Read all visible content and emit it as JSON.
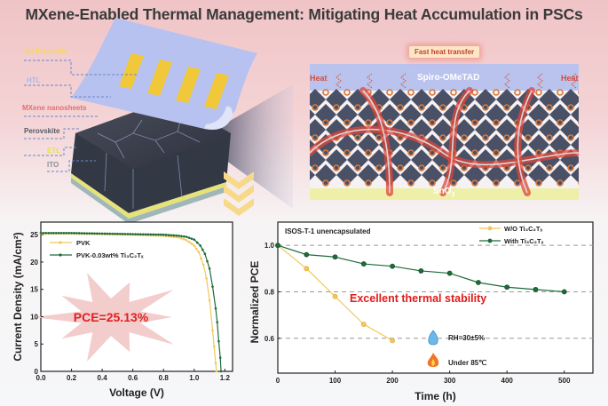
{
  "title": "MXene-Enabled Thermal Management: Mitigating Heat Accumulation in PSCs",
  "device_schematic": {
    "layers": [
      {
        "label": "Au Electrode",
        "color": "#f5d66a"
      },
      {
        "label": "HTL",
        "color": "#a9b8ee"
      },
      {
        "label": "MXene nanosheets",
        "color": "#e07070"
      },
      {
        "label": "Perovskite",
        "color": "#555a66"
      },
      {
        "label": "ETL",
        "color": "#e8e050"
      },
      {
        "label": "ITO",
        "color": "#8a8f9a"
      }
    ]
  },
  "lattice_schematic": {
    "callout": "Fast heat transfer",
    "top_layer": "Spiro-OMeTAD",
    "bottom_layer": "SnO2",
    "heat_left": "Heat",
    "heat_right": "Heat"
  },
  "chart_data": [
    {
      "type": "line",
      "title": "",
      "xlabel": "Voltage (V)",
      "ylabel": "Current Density (mA/cm²)",
      "xlim": [
        0.0,
        1.25
      ],
      "ylim": [
        0,
        27.3
      ],
      "xticks": [
        "0.0",
        "0.2",
        "0.4",
        "0.6",
        "0.8",
        "1.0",
        "1.2"
      ],
      "yticks": [
        "0",
        "5",
        "10",
        "15",
        "20",
        "25"
      ],
      "annotation": "PCE=25.13%",
      "legend_position": "upper-left",
      "series": [
        {
          "name": "PVK",
          "color": "#f0c85a",
          "x": [
            0.0,
            0.2,
            0.4,
            0.6,
            0.8,
            0.9,
            0.95,
            1.0,
            1.03,
            1.06,
            1.08,
            1.1,
            1.12,
            1.13,
            1.14,
            1.145
          ],
          "y": [
            25.2,
            25.2,
            25.1,
            25.0,
            24.8,
            24.5,
            24.0,
            23.0,
            21.8,
            19.5,
            17.0,
            13.0,
            7.5,
            4.5,
            1.5,
            0
          ]
        },
        {
          "name": "PVK-0.03wt% Ti₃C₂Tₓ",
          "color": "#1e6b3a",
          "x": [
            0.0,
            0.2,
            0.4,
            0.6,
            0.8,
            0.9,
            0.95,
            1.0,
            1.04,
            1.07,
            1.1,
            1.12,
            1.14,
            1.15,
            1.16,
            1.17,
            1.175
          ],
          "y": [
            25.3,
            25.3,
            25.2,
            25.1,
            25.0,
            24.8,
            24.6,
            24.1,
            23.0,
            21.5,
            18.8,
            15.5,
            11.5,
            9.0,
            5.5,
            2.5,
            0
          ]
        }
      ]
    },
    {
      "type": "line",
      "title": "ISOS-T-1   unencapsulated",
      "xlabel": "Time (h)",
      "ylabel": "Normalized PCE",
      "xlim": [
        0,
        550
      ],
      "ylim": [
        0.45,
        1.1
      ],
      "xticks": [
        "0",
        "100",
        "200",
        "300",
        "400",
        "500"
      ],
      "yticks": [
        "0.6",
        "0.8",
        "1.0"
      ],
      "grid": "dashed horizontal at 0.6, 0.8, 1.0",
      "legend_position": "upper-right",
      "annotations": [
        "Excellent thermal stability",
        "RH=30±5%",
        "Under 85℃"
      ],
      "series": [
        {
          "name": "W/O Ti₃C₂Tₓ",
          "color": "#f0c85a",
          "x": [
            0,
            50,
            100,
            150,
            200
          ],
          "y": [
            1.0,
            0.9,
            0.78,
            0.66,
            0.59
          ]
        },
        {
          "name": "With Ti₃C₂Tₓ",
          "color": "#1e6b3a",
          "x": [
            0,
            50,
            100,
            150,
            200,
            250,
            300,
            350,
            400,
            450,
            500
          ],
          "y": [
            1.0,
            0.96,
            0.95,
            0.92,
            0.91,
            0.89,
            0.88,
            0.84,
            0.82,
            0.81,
            0.8
          ]
        }
      ]
    }
  ]
}
